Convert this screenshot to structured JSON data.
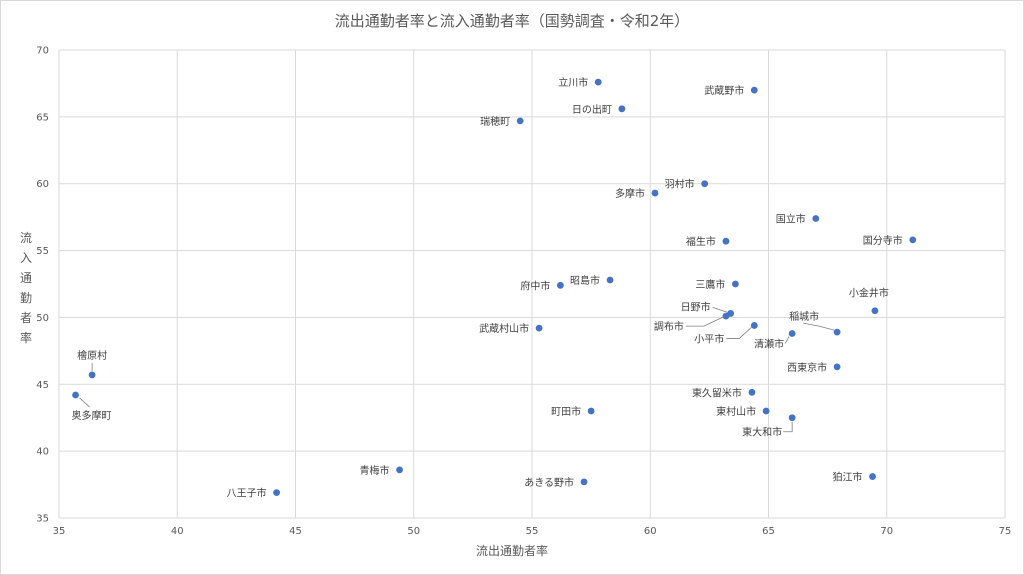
{
  "chart_data": {
    "type": "scatter",
    "title": "流出通勤者率と流入通勤者率（国勢調査・令和2年）",
    "xlabel": "流出通勤者率",
    "ylabel": "流入通勤者率",
    "xlim": [
      35,
      75
    ],
    "ylim": [
      35,
      70
    ],
    "xticks": [
      35,
      40,
      45,
      50,
      55,
      60,
      65,
      70,
      75
    ],
    "yticks": [
      35,
      40,
      45,
      50,
      55,
      60,
      65,
      70
    ],
    "grid": true,
    "color": "#4472c4",
    "points": [
      {
        "label": "立川市",
        "x": 57.8,
        "y": 67.6
      },
      {
        "label": "武蔵野市",
        "x": 64.4,
        "y": 67.0
      },
      {
        "label": "日の出町",
        "x": 58.8,
        "y": 65.6
      },
      {
        "label": "瑞穂町",
        "x": 54.5,
        "y": 64.7
      },
      {
        "label": "羽村市",
        "x": 62.3,
        "y": 60.0
      },
      {
        "label": "多摩市",
        "x": 60.2,
        "y": 59.3
      },
      {
        "label": "国立市",
        "x": 67.0,
        "y": 57.4
      },
      {
        "label": "国分寺市",
        "x": 71.1,
        "y": 55.8
      },
      {
        "label": "福生市",
        "x": 63.2,
        "y": 55.7
      },
      {
        "label": "昭島市",
        "x": 58.3,
        "y": 52.8
      },
      {
        "label": "府中市",
        "x": 56.2,
        "y": 52.4
      },
      {
        "label": "三鷹市",
        "x": 63.6,
        "y": 52.5
      },
      {
        "label": "小金井市",
        "x": 69.5,
        "y": 50.5
      },
      {
        "label": "日野市",
        "x": 63.4,
        "y": 50.3
      },
      {
        "label": "調布市",
        "x": 63.2,
        "y": 50.1
      },
      {
        "label": "稲城市",
        "x": 67.9,
        "y": 48.9
      },
      {
        "label": "武蔵村山市",
        "x": 55.3,
        "y": 49.2
      },
      {
        "label": "小平市",
        "x": 64.4,
        "y": 49.4
      },
      {
        "label": "清瀬市",
        "x": 66.0,
        "y": 48.8
      },
      {
        "label": "檜原村",
        "x": 36.4,
        "y": 45.7
      },
      {
        "label": "西東京市",
        "x": 67.9,
        "y": 46.3
      },
      {
        "label": "奥多摩町",
        "x": 35.7,
        "y": 44.2
      },
      {
        "label": "東久留米市",
        "x": 64.3,
        "y": 44.4
      },
      {
        "label": "町田市",
        "x": 57.5,
        "y": 43.0
      },
      {
        "label": "東村山市",
        "x": 64.9,
        "y": 43.0
      },
      {
        "label": "東大和市",
        "x": 66.0,
        "y": 42.5
      },
      {
        "label": "青梅市",
        "x": 49.4,
        "y": 38.6
      },
      {
        "label": "狛江市",
        "x": 69.4,
        "y": 38.1
      },
      {
        "label": "あきる野市",
        "x": 57.2,
        "y": 37.7
      },
      {
        "label": "八王子市",
        "x": 44.2,
        "y": 36.9
      }
    ]
  }
}
